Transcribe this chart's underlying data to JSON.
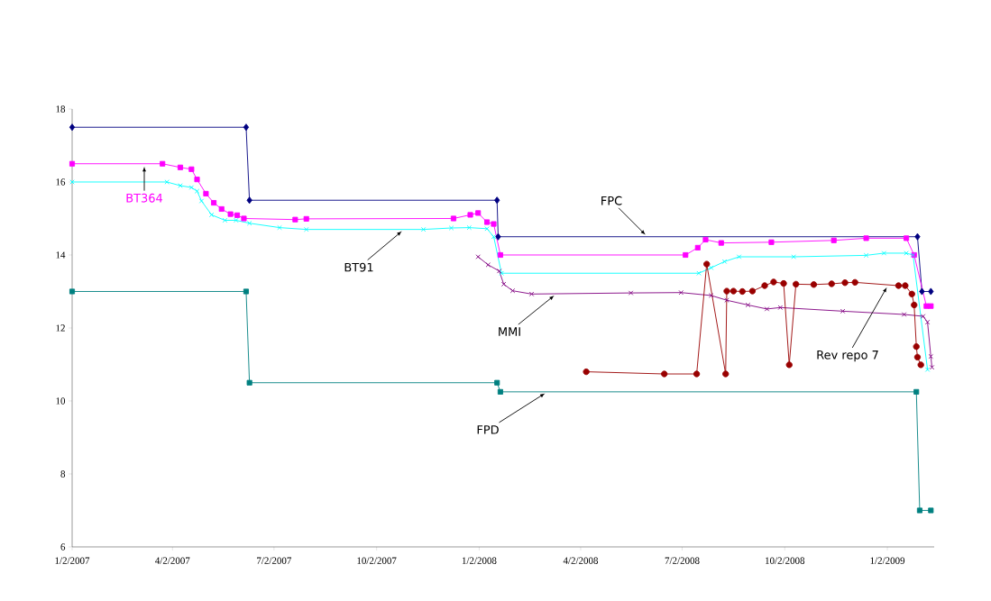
{
  "chart_data": {
    "type": "line",
    "xlim": [
      "2007-01-02",
      "2009-02-13"
    ],
    "xticks": [
      {
        "value": "2007-01-02",
        "label": "1/2/2007"
      },
      {
        "value": "2007-04-02",
        "label": "4/2/2007"
      },
      {
        "value": "2007-07-02",
        "label": "7/2/2007"
      },
      {
        "value": "2007-10-02",
        "label": "10/2/2007"
      },
      {
        "value": "2008-01-02",
        "label": "1/2/2008"
      },
      {
        "value": "2008-04-02",
        "label": "4/2/2008"
      },
      {
        "value": "2008-07-02",
        "label": "7/2/2008"
      },
      {
        "value": "2008-10-02",
        "label": "10/2/2008"
      },
      {
        "value": "2009-01-02",
        "label": "1/2/2009"
      }
    ],
    "ylim": [
      6,
      18
    ],
    "yticks": [
      6,
      8,
      10,
      12,
      14,
      16,
      18
    ],
    "legend": false,
    "series": [
      {
        "name": "FPC",
        "color": "#000080",
        "marker": "diamond",
        "x": [
          "2007-01-02",
          "2007-06-07",
          "2007-06-10",
          "2008-01-18",
          "2008-01-19",
          "2009-01-29",
          "2009-02-02",
          "2009-02-10"
        ],
        "values": [
          17.5,
          17.5,
          15.5,
          15.5,
          14.5,
          14.5,
          13.0,
          13.0
        ]
      },
      {
        "name": "BT364",
        "color": "#ff00ff",
        "marker": "square",
        "x": [
          "2007-01-02",
          "2007-03-24",
          "2007-04-09",
          "2007-04-19",
          "2007-04-24",
          "2007-05-02",
          "2007-05-09",
          "2007-05-16",
          "2007-05-24",
          "2007-05-30",
          "2007-06-05",
          "2007-07-21",
          "2007-07-31",
          "2007-12-10",
          "2007-12-25",
          "2008-01-01",
          "2008-01-09",
          "2008-01-15",
          "2008-01-21",
          "2008-07-05",
          "2008-07-16",
          "2008-07-23",
          "2008-08-06",
          "2008-09-20",
          "2008-11-15",
          "2008-12-14",
          "2009-01-19",
          "2009-01-26",
          "2009-02-06",
          "2009-02-10"
        ],
        "values": [
          16.5,
          16.5,
          16.4,
          16.35,
          16.07,
          15.68,
          15.43,
          15.26,
          15.12,
          15.09,
          15.0,
          14.97,
          14.99,
          15.0,
          15.1,
          15.15,
          14.9,
          14.85,
          14.0,
          14.0,
          14.2,
          14.42,
          14.33,
          14.35,
          14.4,
          14.46,
          14.46,
          14.0,
          12.6,
          12.6
        ]
      },
      {
        "name": "BT91",
        "color": "#00ffff",
        "marker": "cross",
        "x": [
          "2007-01-02",
          "2007-03-28",
          "2007-04-09",
          "2007-04-19",
          "2007-04-24",
          "2007-04-28",
          "2007-05-07",
          "2007-05-19",
          "2007-05-29",
          "2007-06-10",
          "2007-07-07",
          "2007-07-31",
          "2007-11-13",
          "2007-12-08",
          "2007-12-24",
          "2008-01-09",
          "2008-01-15",
          "2008-01-22",
          "2008-07-17",
          "2008-07-28",
          "2008-08-09",
          "2008-08-22",
          "2008-10-10",
          "2008-12-14",
          "2008-12-30",
          "2009-01-19",
          "2009-01-25",
          "2009-02-07"
        ],
        "values": [
          16.0,
          16.0,
          15.9,
          15.85,
          15.75,
          15.48,
          15.1,
          14.95,
          14.95,
          14.87,
          14.75,
          14.7,
          14.7,
          14.74,
          14.75,
          14.72,
          14.5,
          13.5,
          13.5,
          13.65,
          13.82,
          13.95,
          13.95,
          13.99,
          14.05,
          14.05,
          14.0,
          10.86
        ]
      },
      {
        "name": "MMI",
        "color": "#800080",
        "marker": "cross",
        "x": [
          "2008-01-01",
          "2008-01-10",
          "2008-01-20",
          "2008-01-24",
          "2008-02-01",
          "2008-02-18",
          "2008-05-17",
          "2008-07-01",
          "2008-07-28",
          "2008-08-11",
          "2008-08-30",
          "2008-09-16",
          "2008-09-28",
          "2008-11-23",
          "2009-01-17",
          "2009-02-03",
          "2009-02-07",
          "2009-02-10",
          "2009-02-11"
        ],
        "values": [
          13.95,
          13.73,
          13.56,
          13.2,
          13.02,
          12.93,
          12.96,
          12.97,
          12.89,
          12.76,
          12.63,
          12.52,
          12.56,
          12.46,
          12.37,
          12.32,
          12.16,
          11.22,
          10.92
        ]
      },
      {
        "name": "Rev repo 7",
        "color": "#990000",
        "marker": "circle",
        "x": [
          "2008-04-07",
          "2008-06-16",
          "2008-07-15",
          "2008-07-24",
          "2008-08-10",
          "2008-08-11",
          "2008-08-17",
          "2008-08-25",
          "2008-09-03",
          "2008-09-14",
          "2008-09-22",
          "2008-10-01",
          "2008-10-06",
          "2008-10-12",
          "2008-10-28",
          "2008-11-13",
          "2008-11-25",
          "2008-12-04",
          "2009-01-12",
          "2009-01-18",
          "2009-01-24",
          "2009-01-26",
          "2009-01-28",
          "2009-01-29",
          "2009-02-01"
        ],
        "values": [
          10.8,
          10.74,
          10.74,
          13.75,
          10.74,
          13.01,
          13.01,
          13.0,
          13.01,
          13.16,
          13.26,
          13.22,
          10.99,
          13.2,
          13.19,
          13.21,
          13.24,
          13.25,
          13.16,
          13.16,
          12.93,
          12.63,
          11.49,
          11.2,
          10.99
        ]
      },
      {
        "name": "FPD",
        "color": "#008080",
        "marker": "square",
        "x": [
          "2007-01-02",
          "2007-06-07",
          "2007-06-10",
          "2008-01-18",
          "2008-01-21",
          "2009-01-28",
          "2009-01-31",
          "2009-02-10"
        ],
        "values": [
          13.0,
          13.0,
          10.5,
          10.5,
          10.25,
          10.25,
          7.0,
          7.0
        ]
      }
    ]
  }
}
